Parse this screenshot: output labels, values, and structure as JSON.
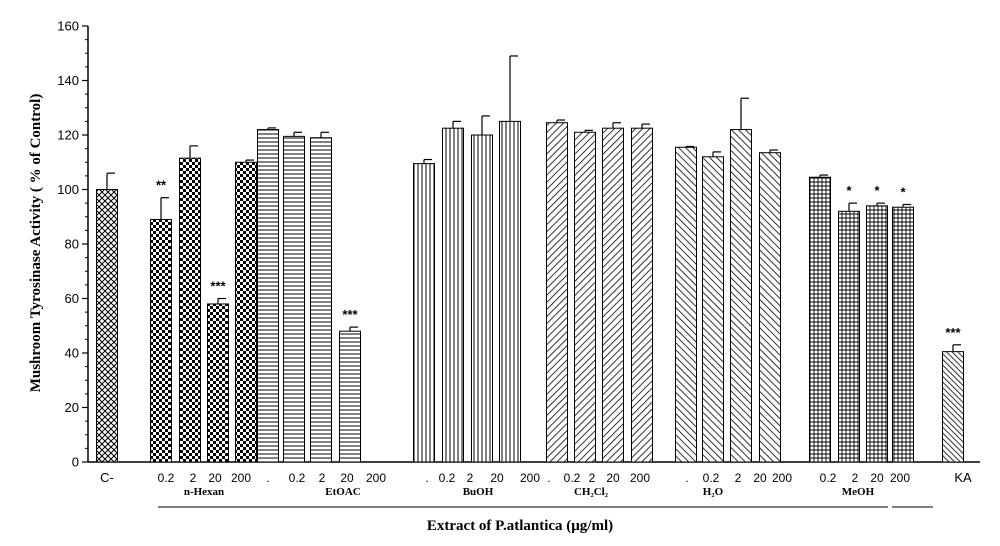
{
  "chart_data": {
    "type": "bar",
    "ylabel": "Mushroom Tyrosinase Activity ( % of Control)",
    "xlabel": "Extract of P.atlantica (μg/ml)",
    "ylim": [
      0,
      160
    ],
    "yticks": [
      0,
      20,
      40,
      60,
      80,
      100,
      120,
      140,
      160
    ],
    "grid": false,
    "groups": [
      {
        "name": "",
        "pattern": "diamond",
        "bars": [
          {
            "label": "C-",
            "value": 100,
            "err": 6,
            "sig": ""
          }
        ]
      },
      {
        "name": "n-Hexan",
        "pattern": "checker",
        "bars": [
          {
            "label": "0.2",
            "value": 89,
            "err": 8,
            "sig": "**"
          },
          {
            "label": "2",
            "value": 111.5,
            "err": 4.5,
            "sig": ""
          },
          {
            "label": "20",
            "value": 58,
            "err": 2,
            "sig": "***"
          },
          {
            "label": "200",
            "value": 110,
            "err": 0.8,
            "sig": ""
          }
        ]
      },
      {
        "name": "EtOAC",
        "pattern": "hlines",
        "bars": [
          {
            "label": ".",
            "value": 122,
            "err": 0.6,
            "sig": ""
          },
          {
            "label": "0.2",
            "value": 119.5,
            "err": 1.5,
            "sig": ""
          },
          {
            "label": "2",
            "value": 119,
            "err": 2,
            "sig": ""
          },
          {
            "label": "20",
            "value": 48,
            "err": 1.5,
            "sig": "***"
          },
          {
            "label": "200",
            "value": null,
            "err": null,
            "sig": ""
          }
        ]
      },
      {
        "name": "BuOH",
        "pattern": "vlines",
        "bars": [
          {
            "label": ".",
            "value": 109.5,
            "err": 1.5,
            "sig": ""
          },
          {
            "label": "0.2",
            "value": 122.5,
            "err": 2.5,
            "sig": ""
          },
          {
            "label": "2",
            "value": 120,
            "err": 7,
            "sig": ""
          },
          {
            "label": "20",
            "value": 125,
            "err": 24,
            "sig": ""
          },
          {
            "label": "200",
            "value": null,
            "err": null,
            "sig": ""
          }
        ]
      },
      {
        "name": "CH₂Cl₂",
        "pattern": "diag",
        "bars": [
          {
            "label": ".",
            "value": 124.5,
            "err": 1,
            "sig": ""
          },
          {
            "label": "0.2",
            "value": 121,
            "err": 0.7,
            "sig": ""
          },
          {
            "label": "2",
            "value": 122.5,
            "err": 2,
            "sig": ""
          },
          {
            "label": "20",
            "value": 122.5,
            "err": 1.5,
            "sig": ""
          },
          {
            "label": "200",
            "value": null,
            "err": null,
            "sig": ""
          }
        ]
      },
      {
        "name": "H₂O",
        "pattern": "backdiag",
        "bars": [
          {
            "label": ".",
            "value": 115.5,
            "err": 0.3,
            "sig": ""
          },
          {
            "label": "0.2",
            "value": 112,
            "err": 1.8,
            "sig": ""
          },
          {
            "label": "2",
            "value": 122,
            "err": 11.5,
            "sig": ""
          },
          {
            "label": "20",
            "value": 113.5,
            "err": 1,
            "sig": ""
          },
          {
            "label": "200",
            "value": null,
            "err": null,
            "sig": ""
          }
        ]
      },
      {
        "name": "MeOH",
        "pattern": "grid",
        "bars": [
          {
            "label": "0.2",
            "value": 104.5,
            "err": 0.8,
            "sig": ""
          },
          {
            "label": "2",
            "value": 92,
            "err": 3,
            "sig": "*"
          },
          {
            "label": "20",
            "value": 94,
            "err": 1,
            "sig": "*"
          },
          {
            "label": "200",
            "value": 93.5,
            "err": 1,
            "sig": "*"
          }
        ]
      },
      {
        "name": "",
        "pattern": "dense-backdiag",
        "bars": [
          {
            "label": "KA",
            "value": 40.5,
            "err": 2.5,
            "sig": "***"
          }
        ]
      }
    ]
  }
}
